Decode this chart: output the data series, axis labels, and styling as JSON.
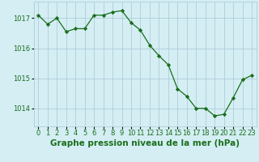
{
  "x": [
    0,
    1,
    2,
    3,
    4,
    5,
    6,
    7,
    8,
    9,
    10,
    11,
    12,
    13,
    14,
    15,
    16,
    17,
    18,
    19,
    20,
    21,
    22,
    23
  ],
  "y": [
    1017.1,
    1016.8,
    1017.0,
    1016.55,
    1016.65,
    1016.65,
    1017.1,
    1017.1,
    1017.2,
    1017.25,
    1016.85,
    1016.6,
    1016.1,
    1015.75,
    1015.45,
    1014.65,
    1014.4,
    1014.0,
    1014.0,
    1013.75,
    1013.8,
    1014.35,
    1014.95,
    1015.1
  ],
  "line_color": "#1a6e1a",
  "marker": "D",
  "marker_size": 2.2,
  "bg_color": "#d4eef4",
  "grid_color": "#b0cdd8",
  "tick_label_color": "#1a6e1a",
  "xlabel": "Graphe pression niveau de la mer (hPa)",
  "xlabel_color": "#1a6e1a",
  "xlabel_fontsize": 7.5,
  "xlim": [
    -0.5,
    23.5
  ],
  "ylim": [
    1013.4,
    1017.55
  ],
  "yticks": [
    1014,
    1015,
    1016,
    1017
  ],
  "xticks": [
    0,
    1,
    2,
    3,
    4,
    5,
    6,
    7,
    8,
    9,
    10,
    11,
    12,
    13,
    14,
    15,
    16,
    17,
    18,
    19,
    20,
    21,
    22,
    23
  ],
  "xtick_labels": [
    "0",
    "1",
    "2",
    "3",
    "4",
    "5",
    "6",
    "7",
    "8",
    "9",
    "10",
    "11",
    "12",
    "13",
    "14",
    "15",
    "16",
    "17",
    "18",
    "19",
    "20",
    "21",
    "22",
    "23"
  ],
  "tick_fontsize": 6.0
}
